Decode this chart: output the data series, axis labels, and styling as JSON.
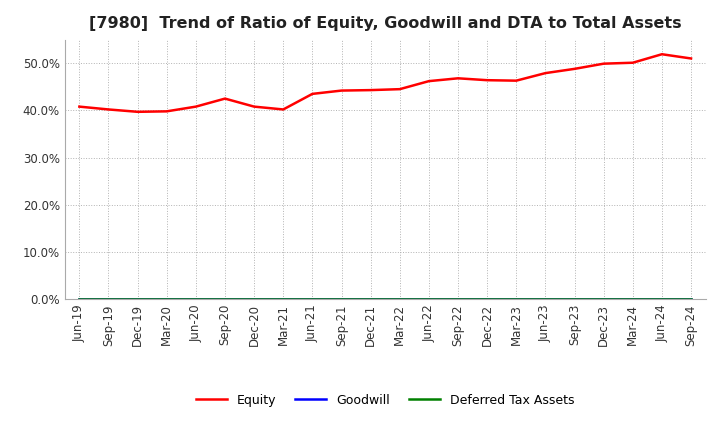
{
  "title": "[7980]  Trend of Ratio of Equity, Goodwill and DTA to Total Assets",
  "x_labels": [
    "Jun-19",
    "Sep-19",
    "Dec-19",
    "Mar-20",
    "Jun-20",
    "Sep-20",
    "Dec-20",
    "Mar-21",
    "Jun-21",
    "Sep-21",
    "Dec-21",
    "Mar-22",
    "Jun-22",
    "Sep-22",
    "Dec-22",
    "Mar-23",
    "Jun-23",
    "Sep-23",
    "Dec-23",
    "Mar-24",
    "Jun-24",
    "Sep-24"
  ],
  "equity": [
    0.408,
    0.402,
    0.397,
    0.398,
    0.408,
    0.425,
    0.408,
    0.402,
    0.435,
    0.442,
    0.443,
    0.445,
    0.462,
    0.468,
    0.464,
    0.463,
    0.479,
    0.488,
    0.499,
    0.501,
    0.519,
    0.51
  ],
  "goodwill": [
    0,
    0,
    0,
    0,
    0,
    0,
    0,
    0,
    0,
    0,
    0,
    0,
    0,
    0,
    0,
    0,
    0,
    0,
    0,
    0,
    0,
    0
  ],
  "dta": [
    0,
    0,
    0,
    0,
    0,
    0,
    0,
    0,
    0,
    0,
    0,
    0,
    0,
    0,
    0,
    0,
    0,
    0,
    0,
    0,
    0,
    0
  ],
  "equity_color": "#FF0000",
  "goodwill_color": "#0000FF",
  "dta_color": "#008000",
  "bg_color": "#FFFFFF",
  "plot_bg_color": "#FFFFFF",
  "grid_color": "#AAAAAA",
  "ylim": [
    0.0,
    0.55
  ],
  "yticks": [
    0.0,
    0.1,
    0.2,
    0.3,
    0.4,
    0.5
  ],
  "title_fontsize": 11.5,
  "tick_fontsize": 8.5,
  "legend_labels": [
    "Equity",
    "Goodwill",
    "Deferred Tax Assets"
  ],
  "legend_fontsize": 9
}
